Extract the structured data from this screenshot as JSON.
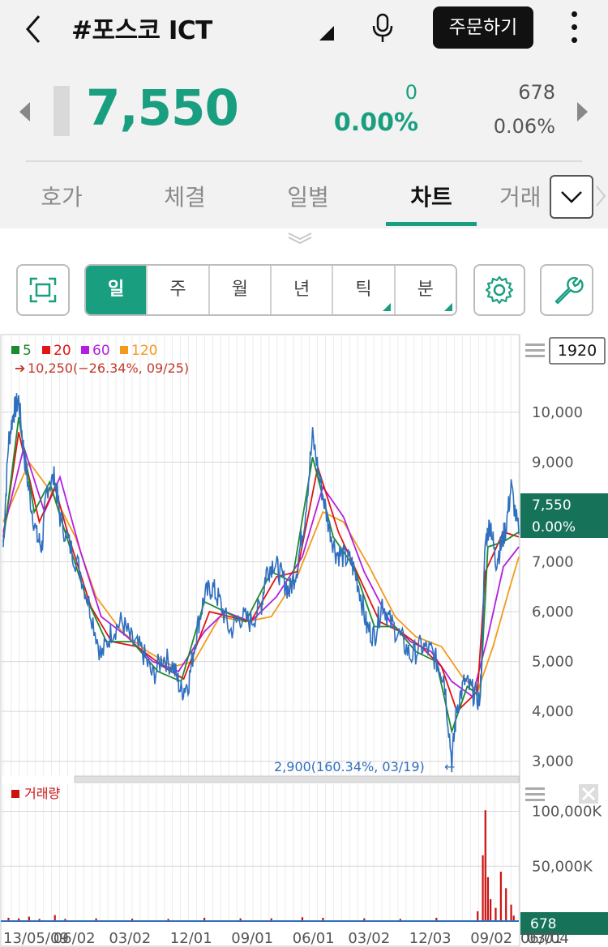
{
  "header": {
    "title": "#포스코 ICT",
    "order_label": "주문하기"
  },
  "price": {
    "current": "7,550",
    "change": "0",
    "change_pct": "0.00%",
    "volume": "678",
    "volume_pct": "0.06%"
  },
  "tabs": [
    {
      "label": "호가"
    },
    {
      "label": "체결"
    },
    {
      "label": "일별"
    },
    {
      "label": "차트"
    },
    {
      "label": "거래"
    }
  ],
  "period": [
    "일",
    "주",
    "월",
    "년",
    "틱",
    "분"
  ],
  "chart": {
    "legend": [
      {
        "label": "5",
        "color": "#1e8a2e"
      },
      {
        "label": "20",
        "color": "#e01515"
      },
      {
        "label": "60",
        "color": "#b21fe0"
      },
      {
        "label": "120",
        "color": "#f39a1b"
      }
    ],
    "count_box": "1920",
    "high_note": "10,250(−26.34%, 09/25)",
    "low_note": "2,900(160.34%, 03/19)",
    "current_tag_price": "7,550",
    "current_tag_pct": "0.00%",
    "volume_title": "거래량",
    "volume_tag": "678"
  },
  "chart_data": {
    "type": "line",
    "price_axis": {
      "ylim": [
        2800,
        10600
      ],
      "ticks": [
        "10,000",
        "9,000",
        "7,000",
        "6,000",
        "5,000",
        "4,000",
        "3,000"
      ],
      "tick_values": [
        10000,
        9000,
        7000,
        6000,
        5000,
        4000,
        3000
      ]
    },
    "volume_axis": {
      "ticks": [
        "100,000K",
        "50,000K"
      ],
      "tick_values": [
        100000,
        50000
      ],
      "ylim": [
        0,
        110000
      ]
    },
    "x_ticks": [
      "13/05/09",
      "06/02",
      "03/02",
      "12/01",
      "09/01",
      "06/01",
      "03/02",
      "12/03",
      "09/02",
      "06/01",
      "03/04"
    ],
    "x_tick_pos": [
      0.0,
      0.09,
      0.19,
      0.3,
      0.41,
      0.52,
      0.62,
      0.73,
      0.84,
      0.93,
      1.0
    ],
    "close_path": [
      [
        0.0,
        7300
      ],
      [
        0.01,
        9400
      ],
      [
        0.02,
        10000
      ],
      [
        0.03,
        10250
      ],
      [
        0.04,
        9200
      ],
      [
        0.05,
        8400
      ],
      [
        0.065,
        7500
      ],
      [
        0.075,
        7300
      ],
      [
        0.085,
        8500
      ],
      [
        0.1,
        8700
      ],
      [
        0.11,
        7900
      ],
      [
        0.13,
        7300
      ],
      [
        0.15,
        6800
      ],
      [
        0.17,
        6000
      ],
      [
        0.19,
        5100
      ],
      [
        0.21,
        5600
      ],
      [
        0.23,
        5800
      ],
      [
        0.25,
        5400
      ],
      [
        0.27,
        5200
      ],
      [
        0.29,
        4700
      ],
      [
        0.31,
        5100
      ],
      [
        0.33,
        4900
      ],
      [
        0.345,
        4400
      ],
      [
        0.36,
        4600
      ],
      [
        0.375,
        5600
      ],
      [
        0.39,
        6300
      ],
      [
        0.405,
        6500
      ],
      [
        0.42,
        6200
      ],
      [
        0.44,
        5600
      ],
      [
        0.46,
        5900
      ],
      [
        0.48,
        5800
      ],
      [
        0.5,
        6100
      ],
      [
        0.51,
        6800
      ],
      [
        0.525,
        7000
      ],
      [
        0.54,
        6700
      ],
      [
        0.555,
        6400
      ],
      [
        0.57,
        6900
      ],
      [
        0.585,
        7900
      ],
      [
        0.6,
        9500
      ],
      [
        0.615,
        8600
      ],
      [
        0.63,
        7800
      ],
      [
        0.645,
        7200
      ],
      [
        0.66,
        7100
      ],
      [
        0.675,
        7000
      ],
      [
        0.69,
        6500
      ],
      [
        0.705,
        5700
      ],
      [
        0.72,
        5500
      ],
      [
        0.735,
        6200
      ],
      [
        0.75,
        5800
      ],
      [
        0.77,
        5500
      ],
      [
        0.79,
        5100
      ],
      [
        0.81,
        5300
      ],
      [
        0.83,
        5200
      ],
      [
        0.845,
        4900
      ],
      [
        0.855,
        4700
      ],
      [
        0.87,
        3000
      ],
      [
        0.88,
        4100
      ],
      [
        0.895,
        4600
      ],
      [
        0.91,
        4400
      ],
      [
        0.925,
        4200
      ],
      [
        0.935,
        7400
      ],
      [
        0.945,
        7800
      ],
      [
        0.955,
        7000
      ],
      [
        0.965,
        7300
      ],
      [
        0.975,
        7700
      ],
      [
        0.985,
        8500
      ],
      [
        1.0,
        7550
      ]
    ],
    "ma_paths": {
      "5": [
        [
          0.0,
          7400
        ],
        [
          0.03,
          9900
        ],
        [
          0.06,
          8000
        ],
        [
          0.09,
          8600
        ],
        [
          0.12,
          7600
        ],
        [
          0.16,
          6300
        ],
        [
          0.2,
          5400
        ],
        [
          0.25,
          5400
        ],
        [
          0.3,
          4800
        ],
        [
          0.345,
          4600
        ],
        [
          0.39,
          6200
        ],
        [
          0.43,
          6000
        ],
        [
          0.47,
          5800
        ],
        [
          0.52,
          6800
        ],
        [
          0.56,
          6600
        ],
        [
          0.6,
          9100
        ],
        [
          0.64,
          7500
        ],
        [
          0.68,
          6900
        ],
        [
          0.72,
          5700
        ],
        [
          0.76,
          5700
        ],
        [
          0.8,
          5200
        ],
        [
          0.84,
          5000
        ],
        [
          0.87,
          3600
        ],
        [
          0.9,
          4500
        ],
        [
          0.925,
          4300
        ],
        [
          0.94,
          7300
        ],
        [
          0.97,
          7400
        ],
        [
          1.0,
          7600
        ]
      ],
      "20": [
        [
          0.0,
          7500
        ],
        [
          0.03,
          9600
        ],
        [
          0.07,
          7800
        ],
        [
          0.1,
          8500
        ],
        [
          0.13,
          7400
        ],
        [
          0.17,
          6100
        ],
        [
          0.21,
          5400
        ],
        [
          0.26,
          5300
        ],
        [
          0.31,
          4900
        ],
        [
          0.35,
          4650
        ],
        [
          0.4,
          6000
        ],
        [
          0.44,
          5900
        ],
        [
          0.48,
          5800
        ],
        [
          0.53,
          6700
        ],
        [
          0.57,
          6800
        ],
        [
          0.61,
          8900
        ],
        [
          0.65,
          7600
        ],
        [
          0.69,
          6700
        ],
        [
          0.73,
          5800
        ],
        [
          0.77,
          5600
        ],
        [
          0.81,
          5300
        ],
        [
          0.85,
          4900
        ],
        [
          0.88,
          4000
        ],
        [
          0.92,
          4400
        ],
        [
          0.935,
          6800
        ],
        [
          0.97,
          7600
        ],
        [
          1.0,
          7500
        ]
      ],
      "60": [
        [
          0.0,
          7600
        ],
        [
          0.04,
          9300
        ],
        [
          0.08,
          8000
        ],
        [
          0.11,
          8700
        ],
        [
          0.15,
          7200
        ],
        [
          0.19,
          5900
        ],
        [
          0.24,
          5500
        ],
        [
          0.29,
          5000
        ],
        [
          0.34,
          4800
        ],
        [
          0.39,
          5600
        ],
        [
          0.43,
          6000
        ],
        [
          0.48,
          5800
        ],
        [
          0.53,
          6300
        ],
        [
          0.58,
          7100
        ],
        [
          0.62,
          8500
        ],
        [
          0.66,
          7900
        ],
        [
          0.7,
          6800
        ],
        [
          0.75,
          5800
        ],
        [
          0.79,
          5400
        ],
        [
          0.83,
          5200
        ],
        [
          0.87,
          4600
        ],
        [
          0.91,
          4300
        ],
        [
          0.94,
          5500
        ],
        [
          0.97,
          6900
        ],
        [
          1.0,
          7300
        ]
      ],
      "120": [
        [
          0.0,
          7800
        ],
        [
          0.05,
          9000
        ],
        [
          0.1,
          8300
        ],
        [
          0.14,
          7500
        ],
        [
          0.18,
          6300
        ],
        [
          0.23,
          5600
        ],
        [
          0.28,
          5200
        ],
        [
          0.33,
          4900
        ],
        [
          0.37,
          5000
        ],
        [
          0.42,
          5900
        ],
        [
          0.47,
          5800
        ],
        [
          0.52,
          5900
        ],
        [
          0.57,
          6700
        ],
        [
          0.62,
          8000
        ],
        [
          0.66,
          7800
        ],
        [
          0.71,
          6900
        ],
        [
          0.76,
          5900
        ],
        [
          0.8,
          5500
        ],
        [
          0.85,
          5300
        ],
        [
          0.89,
          4700
        ],
        [
          0.92,
          4400
        ],
        [
          0.95,
          5300
        ],
        [
          0.98,
          6400
        ],
        [
          1.0,
          7100
        ]
      ]
    },
    "volume_bars": [
      [
        0.01,
        3000
      ],
      [
        0.03,
        2500
      ],
      [
        0.05,
        4000
      ],
      [
        0.07,
        2000
      ],
      [
        0.1,
        5500
      ],
      [
        0.12,
        2000
      ],
      [
        0.18,
        2500
      ],
      [
        0.25,
        2200
      ],
      [
        0.32,
        2000
      ],
      [
        0.39,
        3000
      ],
      [
        0.46,
        2500
      ],
      [
        0.52,
        2500
      ],
      [
        0.58,
        3500
      ],
      [
        0.62,
        3000
      ],
      [
        0.7,
        2500
      ],
      [
        0.77,
        2000
      ],
      [
        0.84,
        3000
      ],
      [
        0.92,
        9000
      ],
      [
        0.93,
        60000
      ],
      [
        0.935,
        101000
      ],
      [
        0.94,
        40000
      ],
      [
        0.945,
        20000
      ],
      [
        0.955,
        12000
      ],
      [
        0.965,
        45000
      ],
      [
        0.975,
        30000
      ],
      [
        0.985,
        15000
      ],
      [
        0.99,
        5000
      ]
    ]
  }
}
